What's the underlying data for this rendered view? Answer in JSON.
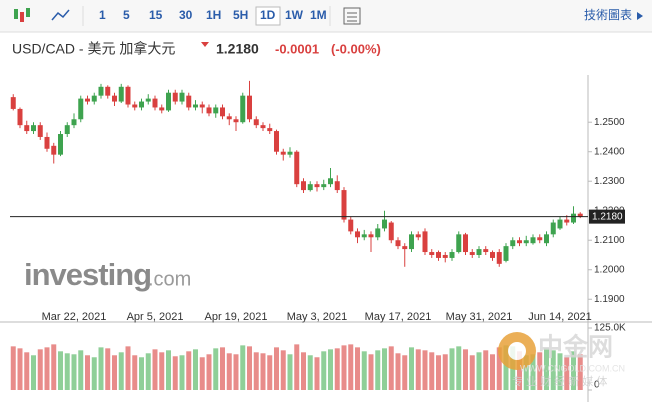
{
  "toolbar": {
    "intervals": [
      "1",
      "5",
      "15",
      "30",
      "1H",
      "5H",
      "1D",
      "1W",
      "1M"
    ],
    "selected": "1D",
    "chart_link": "技術圖表"
  },
  "header": {
    "symbol": "USD/CAD - 美元 加拿大元",
    "price": "1.2180",
    "change": "-0.0001",
    "change_pct": "(-0.00%)"
  },
  "logo": {
    "name": "investing",
    "suffix": ".com"
  },
  "watermark": {
    "name": "中金网",
    "site": "WWW.CNGOLD.COM.CN",
    "slogan": "专 业 财 经 新 媒 体"
  },
  "chart_data": {
    "type": "candlestick",
    "categories": [
      null,
      null,
      null,
      null,
      null,
      null,
      null,
      null,
      null,
      "Mar 22, 2021",
      null,
      null,
      null,
      null,
      null,
      null,
      null,
      null,
      null,
      null,
      null,
      "Apr 5, 2021",
      null,
      null,
      null,
      null,
      null,
      null,
      null,
      null,
      null,
      null,
      null,
      "Apr 19, 2021",
      null,
      null,
      null,
      null,
      null,
      null,
      null,
      null,
      null,
      null,
      null,
      "May 3, 2021",
      null,
      null,
      null,
      null,
      null,
      null,
      null,
      null,
      null,
      null,
      null,
      "May 17, 2021",
      null,
      null,
      null,
      null,
      null,
      null,
      null,
      null,
      null,
      null,
      null,
      "May 31, 2021",
      null,
      null,
      null,
      null,
      null,
      null,
      null,
      null,
      null,
      null,
      null,
      "Jun 14, 2021",
      null,
      null,
      null
    ],
    "open": [
      1.2585,
      1.2545,
      1.249,
      1.247,
      1.249,
      1.245,
      1.242,
      1.239,
      1.246,
      1.249,
      1.251,
      1.258,
      1.257,
      1.259,
      1.262,
      1.259,
      1.257,
      1.262,
      1.256,
      1.255,
      1.257,
      1.258,
      1.255,
      1.254,
      1.26,
      1.257,
      1.259,
      1.255,
      1.256,
      1.255,
      1.253,
      1.255,
      1.252,
      1.251,
      1.25,
      1.259,
      1.251,
      1.249,
      1.248,
      1.247,
      1.24,
      1.239,
      1.24,
      1.23,
      1.227,
      1.229,
      1.228,
      1.229,
      1.23,
      1.227,
      1.217,
      1.213,
      1.211,
      1.212,
      1.211,
      1.214,
      1.216,
      1.21,
      1.208,
      1.207,
      1.212,
      1.213,
      1.206,
      1.206,
      1.205,
      1.204,
      1.206,
      1.212,
      1.206,
      1.205,
      1.207,
      1.206,
      1.206,
      1.203,
      1.208,
      1.21,
      1.209,
      1.209,
      1.211,
      1.209,
      1.212,
      1.214,
      1.217,
      1.216,
      1.219
    ],
    "high": [
      1.2595,
      1.255,
      1.2505,
      1.25,
      1.25,
      1.2465,
      1.243,
      1.247,
      1.25,
      1.253,
      1.259,
      1.259,
      1.26,
      1.263,
      1.2625,
      1.26,
      1.263,
      1.2625,
      1.257,
      1.258,
      1.2595,
      1.259,
      1.256,
      1.261,
      1.261,
      1.261,
      1.26,
      1.2575,
      1.257,
      1.256,
      1.256,
      1.256,
      1.253,
      1.252,
      1.26,
      1.264,
      1.252,
      1.25,
      1.2495,
      1.2475,
      1.241,
      1.2415,
      1.2405,
      1.231,
      1.23,
      1.23,
      1.2305,
      1.2345,
      1.232,
      1.228,
      1.218,
      1.214,
      1.2135,
      1.213,
      1.2155,
      1.22,
      1.2165,
      1.211,
      1.209,
      1.213,
      1.213,
      1.214,
      1.207,
      1.2065,
      1.206,
      1.207,
      1.213,
      1.2125,
      1.207,
      1.208,
      1.208,
      1.2065,
      1.207,
      1.209,
      1.211,
      1.211,
      1.2115,
      1.212,
      1.212,
      1.213,
      1.217,
      1.218,
      1.2185,
      1.2215,
      1.2195
    ],
    "low": [
      1.254,
      1.248,
      1.246,
      1.246,
      1.244,
      1.24,
      1.236,
      1.2385,
      1.245,
      1.248,
      1.25,
      1.256,
      1.256,
      1.258,
      1.258,
      1.2555,
      1.2565,
      1.255,
      1.254,
      1.254,
      1.256,
      1.254,
      1.253,
      1.2535,
      1.256,
      1.256,
      1.254,
      1.254,
      1.253,
      1.252,
      1.2515,
      1.251,
      1.249,
      1.247,
      1.2495,
      1.25,
      1.248,
      1.247,
      1.246,
      1.239,
      1.237,
      1.238,
      1.228,
      1.226,
      1.2265,
      1.2265,
      1.227,
      1.228,
      1.226,
      1.216,
      1.212,
      1.209,
      1.21,
      1.206,
      1.21,
      1.213,
      1.209,
      1.207,
      1.201,
      1.206,
      1.21,
      1.205,
      1.204,
      1.203,
      1.2025,
      1.203,
      1.2055,
      1.205,
      1.204,
      1.204,
      1.205,
      1.203,
      1.201,
      1.2025,
      1.207,
      1.208,
      1.208,
      1.2085,
      1.209,
      1.208,
      1.211,
      1.2135,
      1.215,
      1.2155,
      1.2175
    ],
    "close": [
      1.2545,
      1.249,
      1.247,
      1.249,
      1.245,
      1.241,
      1.239,
      1.246,
      1.249,
      1.251,
      1.258,
      1.257,
      1.259,
      1.262,
      1.259,
      1.257,
      1.262,
      1.256,
      1.255,
      1.257,
      1.258,
      1.255,
      1.254,
      1.26,
      1.257,
      1.26,
      1.255,
      1.256,
      1.255,
      1.253,
      1.255,
      1.252,
      1.251,
      1.25,
      1.259,
      1.251,
      1.249,
      1.248,
      1.247,
      1.24,
      1.239,
      1.24,
      1.229,
      1.227,
      1.229,
      1.228,
      1.229,
      1.231,
      1.227,
      1.217,
      1.213,
      1.211,
      1.212,
      1.211,
      1.214,
      1.217,
      1.21,
      1.208,
      1.207,
      1.212,
      1.211,
      1.206,
      1.205,
      1.204,
      1.204,
      1.206,
      1.212,
      1.206,
      1.205,
      1.207,
      1.206,
      1.204,
      1.202,
      1.208,
      1.21,
      1.209,
      1.21,
      1.211,
      1.21,
      1.212,
      1.216,
      1.217,
      1.216,
      1.219,
      1.218
    ],
    "up_color": "#3ea34f",
    "down_color": "#d9403f",
    "volume": [
      88000,
      84000,
      76000,
      70000,
      82000,
      86000,
      92000,
      78000,
      74000,
      72000,
      80000,
      70000,
      66000,
      86000,
      84000,
      70000,
      76000,
      88000,
      70000,
      66000,
      74000,
      82000,
      76000,
      80000,
      68000,
      70000,
      78000,
      82000,
      66000,
      72000,
      84000,
      86000,
      74000,
      72000,
      90000,
      88000,
      76000,
      74000,
      70000,
      86000,
      80000,
      72000,
      92000,
      76000,
      70000,
      66000,
      78000,
      82000,
      84000,
      90000,
      92000,
      86000,
      78000,
      72000,
      80000,
      84000,
      88000,
      74000,
      70000,
      86000,
      82000,
      80000,
      76000,
      70000,
      72000,
      84000,
      88000,
      82000,
      70000,
      76000,
      80000,
      72000,
      86000,
      90000,
      88000,
      78000,
      70000,
      72000,
      76000,
      84000,
      80000,
      74000,
      66000,
      78000,
      72000
    ],
    "volume_up_color": "#8fcf98",
    "volume_down_color": "#e88c8a",
    "ylim": [
      1.185,
      1.266
    ],
    "yticks": [
      {
        "value": 1.19,
        "label": "1.1900"
      },
      {
        "value": 1.2,
        "label": "1.2000"
      },
      {
        "value": 1.21,
        "label": "1.2100"
      },
      {
        "value": 1.22,
        "label": "1.2200"
      },
      {
        "value": 1.23,
        "label": "1.2300"
      },
      {
        "value": 1.24,
        "label": "1.2400"
      },
      {
        "value": 1.25,
        "label": "1.2500"
      }
    ],
    "last_price": {
      "value": 1.218,
      "label": "1.2180"
    },
    "volume_ylim": [
      0,
      125000
    ],
    "volume_ticks": [
      {
        "value": 125000,
        "label": "125.0K"
      },
      0
    ]
  }
}
